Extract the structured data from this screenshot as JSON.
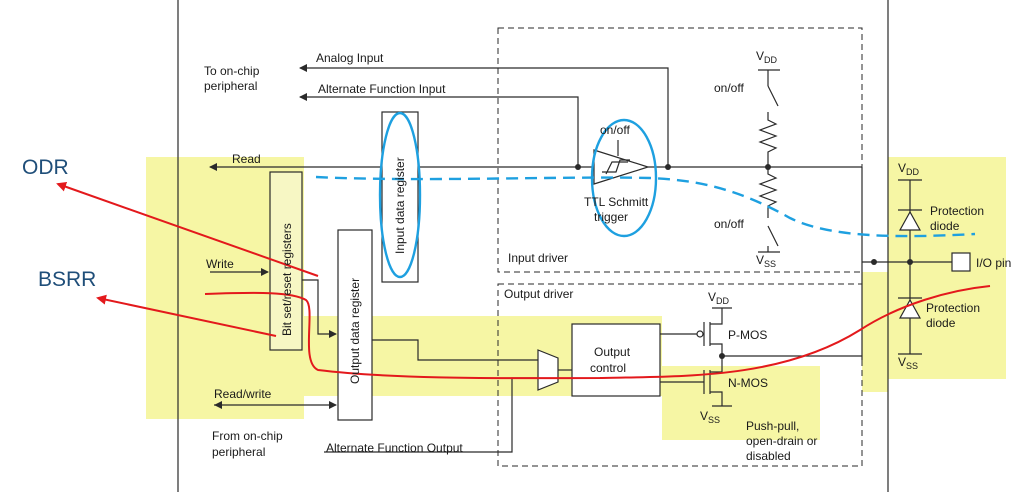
{
  "labels": {
    "to_onchip_1": "To on-chip",
    "to_onchip_2": "peripheral",
    "analog_input": "Analog Input",
    "alt_func_input": "Alternate Function Input",
    "read": "Read",
    "write": "Write",
    "read_write": "Read/write",
    "from_onchip_1": "From on-chip",
    "from_onchip_2": "peripheral",
    "alt_func_output": "Alternate Function Output",
    "bit_set_reset": "Bit set/reset registers",
    "output_data_register": "Output data register",
    "input_data_register": "Input data register",
    "on_off_schmitt": "on/off",
    "ttl_schmitt_1": "TTL Schmitt",
    "ttl_schmitt_2": "trigger",
    "on_off_top": "on/off",
    "on_off_bottom": "on/off",
    "vdd_top_main": "V",
    "vdd_top_sub": "DD",
    "vss_mid_main": "V",
    "vss_mid_sub": "SS",
    "input_driver": "Input driver",
    "output_driver": "Output driver",
    "vdd_out_main": "V",
    "vdd_out_sub": "DD",
    "pmos": "P-MOS",
    "nmos": "N-MOS",
    "vss_out_main": "V",
    "vss_out_sub": "SS",
    "output_control_1": "Output",
    "output_control_2": "control",
    "push_pull_1": "Push-pull,",
    "push_pull_2": "open-drain or",
    "push_pull_3": "disabled",
    "vdd_prot_main": "V",
    "vdd_prot_sub": "DD",
    "protection_1a": "Protection",
    "protection_1b": "diode",
    "io_pin": "I/O pin",
    "protection_2a": "Protection",
    "protection_2b": "diode",
    "vss_prot_main": "V",
    "vss_prot_sub": "SS"
  },
  "annotations": {
    "odr": "ODR",
    "bsrr": "BSRR"
  },
  "colors": {
    "highlight": "#f3f38a",
    "red_path": "#e3191c",
    "blue_path": "#1ea0e0",
    "annotation_text": "#1f4e79"
  }
}
